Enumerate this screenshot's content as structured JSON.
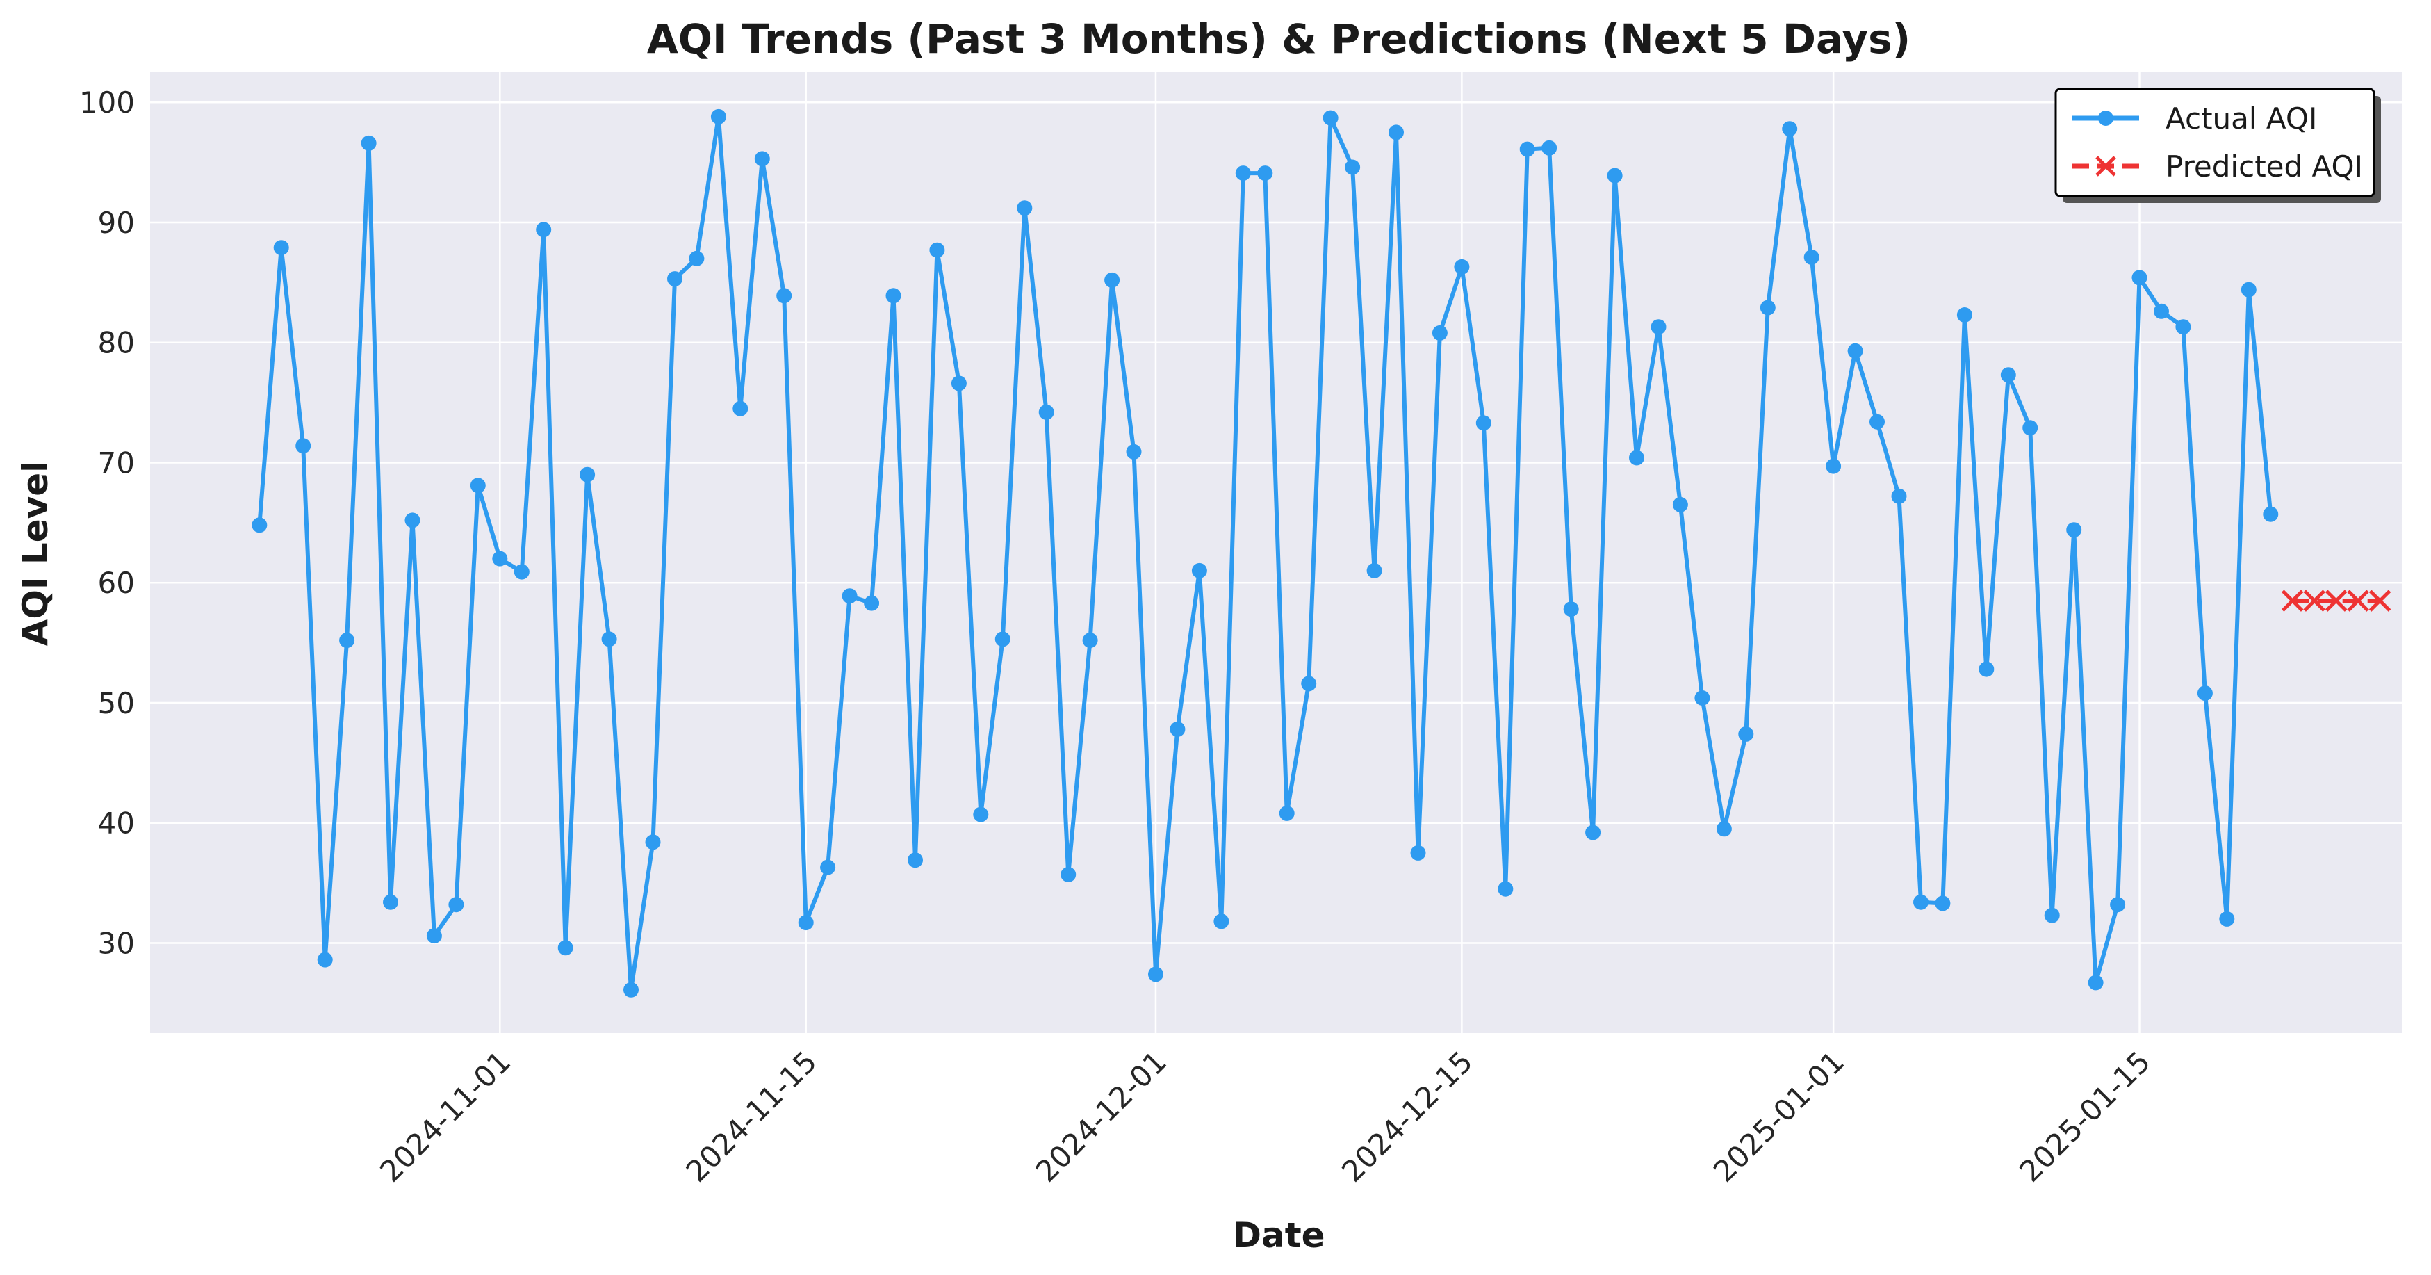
{
  "chart_data": {
    "type": "line",
    "title": "AQI Trends (Past 3 Months) & Predictions (Next 5 Days)",
    "xlabel": "Date",
    "ylabel": "AQI Level",
    "xlim": [
      "2024-10-16",
      "2025-01-27"
    ],
    "ylim": [
      22.5,
      102.5
    ],
    "x_ticks": [
      "2024-11-01",
      "2024-11-15",
      "2024-12-01",
      "2024-12-15",
      "2025-01-01",
      "2025-01-15"
    ],
    "y_ticks": [
      30,
      40,
      50,
      60,
      70,
      80,
      90,
      100
    ],
    "grid": true,
    "legend_position": "top-right",
    "colors": {
      "plot_background": "#eaeaf2",
      "actual": "#2e9bf0",
      "predicted": "#ee3333"
    },
    "series": [
      {
        "name": "Actual AQI",
        "marker": "circle",
        "line_style": "solid",
        "start_date": "2024-10-21",
        "values": [
          64.8,
          87.9,
          71.4,
          28.6,
          55.2,
          96.6,
          33.4,
          65.2,
          30.6,
          33.2,
          68.1,
          62.0,
          60.9,
          89.4,
          29.6,
          69.0,
          55.3,
          26.1,
          38.4,
          85.3,
          87.0,
          98.8,
          74.5,
          95.3,
          83.9,
          31.7,
          36.3,
          58.9,
          58.3,
          83.9,
          36.9,
          87.7,
          76.6,
          40.7,
          55.3,
          91.2,
          74.2,
          35.7,
          55.2,
          85.2,
          70.9,
          27.4,
          47.8,
          61.0,
          31.8,
          94.1,
          94.1,
          40.8,
          51.6,
          98.7,
          94.6,
          61.0,
          97.5,
          37.5,
          80.8,
          86.3,
          73.3,
          34.5,
          96.1,
          96.2,
          57.8,
          39.2,
          93.9,
          70.4,
          81.3,
          66.5,
          50.4,
          39.5,
          47.4,
          82.9,
          97.8,
          87.1,
          69.7,
          79.3,
          73.4,
          67.2,
          33.4,
          33.3,
          82.3,
          52.8,
          77.3,
          72.9,
          32.3,
          64.4,
          26.7,
          33.2,
          85.4,
          82.6,
          81.3,
          50.8,
          32.0,
          84.4,
          65.7
        ]
      },
      {
        "name": "Predicted AQI",
        "marker": "x",
        "line_style": "dashed",
        "start_date": "2025-01-22",
        "values": [
          58.5,
          58.5,
          58.5,
          58.5,
          58.5
        ]
      }
    ]
  }
}
